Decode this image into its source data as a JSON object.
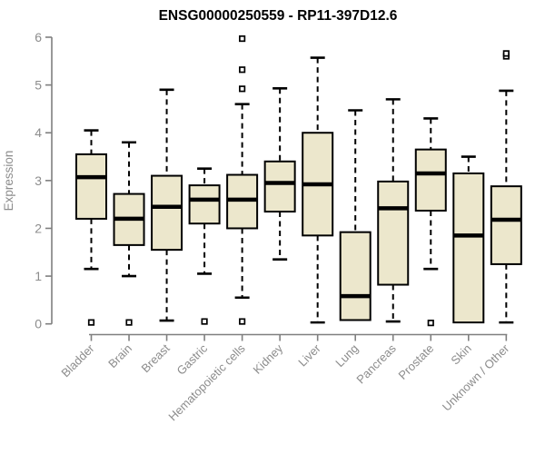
{
  "chart_data": {
    "type": "boxplot",
    "title": "ENSG00000250559 - RP11-397D12.6",
    "ylabel": "Expression",
    "xlabel": "",
    "ylim": [
      0,
      6
    ],
    "yticks": [
      0,
      1,
      2,
      3,
      4,
      5,
      6
    ],
    "grid": false,
    "legend": "none",
    "box_fill_color": "#ECE7CC",
    "box_stroke_color": "#000000",
    "axis_color": "#7F7F7F",
    "label_color": "#8C8C8C",
    "categories": [
      "Bladder",
      "Brain",
      "Breast",
      "Gastric",
      "Hematopoietic cells",
      "Kidney",
      "Liver",
      "Lung",
      "Pancreas",
      "Prostate",
      "Skin",
      "Unknown / Other"
    ],
    "boxes": [
      {
        "label": "Bladder",
        "whisker_low": 1.15,
        "q1": 2.2,
        "median": 3.07,
        "q3": 3.55,
        "whisker_high": 4.05,
        "outliers": [
          0.03
        ]
      },
      {
        "label": "Brain",
        "whisker_low": 1.0,
        "q1": 1.65,
        "median": 2.2,
        "q3": 2.72,
        "whisker_high": 3.8,
        "outliers": [
          0.03
        ]
      },
      {
        "label": "Breast",
        "whisker_low": 0.07,
        "q1": 1.55,
        "median": 2.45,
        "q3": 3.1,
        "whisker_high": 4.9,
        "outliers": []
      },
      {
        "label": "Gastric",
        "whisker_low": 1.05,
        "q1": 2.1,
        "median": 2.6,
        "q3": 2.9,
        "whisker_high": 3.25,
        "outliers": [
          0.05
        ]
      },
      {
        "label": "Hematopoietic cells",
        "whisker_low": 0.55,
        "q1": 2.0,
        "median": 2.6,
        "q3": 3.12,
        "whisker_high": 4.6,
        "outliers": [
          0.05,
          4.92,
          5.32,
          5.97
        ]
      },
      {
        "label": "Kidney",
        "whisker_low": 1.35,
        "q1": 2.35,
        "median": 2.95,
        "q3": 3.4,
        "whisker_high": 4.93,
        "outliers": []
      },
      {
        "label": "Liver",
        "whisker_low": 0.03,
        "q1": 1.85,
        "median": 2.92,
        "q3": 4.0,
        "whisker_high": 5.57,
        "outliers": []
      },
      {
        "label": "Lung",
        "whisker_low": 0.08,
        "q1": 0.08,
        "median": 0.58,
        "q3": 1.92,
        "whisker_high": 4.47,
        "outliers": []
      },
      {
        "label": "Pancreas",
        "whisker_low": 0.05,
        "q1": 0.82,
        "median": 2.42,
        "q3": 2.98,
        "whisker_high": 4.7,
        "outliers": []
      },
      {
        "label": "Prostate",
        "whisker_low": 1.15,
        "q1": 2.37,
        "median": 3.15,
        "q3": 3.65,
        "whisker_high": 4.3,
        "outliers": [
          0.02
        ]
      },
      {
        "label": "Skin",
        "whisker_low": 0.03,
        "q1": 0.03,
        "median": 1.85,
        "q3": 3.15,
        "whisker_high": 3.5,
        "outliers": []
      },
      {
        "label": "Unknown / Other",
        "whisker_low": 0.03,
        "q1": 1.25,
        "median": 2.18,
        "q3": 2.88,
        "whisker_high": 4.88,
        "outliers": [
          5.6,
          5.66
        ]
      }
    ]
  }
}
